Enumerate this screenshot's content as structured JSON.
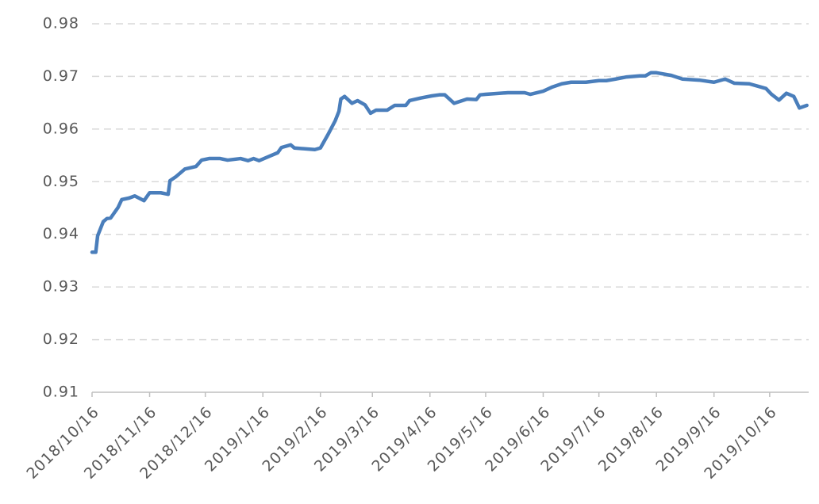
{
  "chart_data": {
    "type": "line",
    "x": [
      "2018/10/16",
      "2018/10/18",
      "2018/10/19",
      "2018/10/22",
      "2018/10/24",
      "2018/10/26",
      "2018/10/30",
      "2018/11/01",
      "2018/11/05",
      "2018/11/08",
      "2018/11/13",
      "2018/11/16",
      "2018/11/22",
      "2018/11/26",
      "2018/11/27",
      "2018/11/30",
      "2018/12/05",
      "2018/12/11",
      "2018/12/14",
      "2018/12/18",
      "2018/12/24",
      "2018/12/28",
      "2019/01/04",
      "2019/01/08",
      "2019/01/11",
      "2019/01/14",
      "2019/01/20",
      "2019/01/24",
      "2019/01/26",
      "2019/01/31",
      "2019/02/02",
      "2019/02/13",
      "2019/02/16",
      "2019/02/20",
      "2019/02/24",
      "2019/02/26",
      "2019/02/27",
      "2019/03/01",
      "2019/03/05",
      "2019/03/08",
      "2019/03/12",
      "2019/03/15",
      "2019/03/18",
      "2019/03/24",
      "2019/03/28",
      "2019/04/03",
      "2019/04/05",
      "2019/04/11",
      "2019/04/17",
      "2019/04/21",
      "2019/04/24",
      "2019/04/29",
      "2019/05/06",
      "2019/05/11",
      "2019/05/13",
      "2019/05/16",
      "2019/05/28",
      "2019/06/06",
      "2019/06/09",
      "2019/06/16",
      "2019/06/21",
      "2019/06/26",
      "2019/07/01",
      "2019/07/09",
      "2019/07/16",
      "2019/07/20",
      "2019/07/25",
      "2019/07/31",
      "2019/08/07",
      "2019/08/10",
      "2019/08/13",
      "2019/08/16",
      "2019/08/24",
      "2019/08/30",
      "2019/09/08",
      "2019/09/16",
      "2019/09/22",
      "2019/09/27",
      "2019/10/05",
      "2019/10/11",
      "2019/10/14",
      "2019/10/17",
      "2019/10/21",
      "2019/10/25",
      "2019/10/29",
      "2019/11/01",
      "2019/11/05"
    ],
    "series": [
      {
        "name": "series",
        "color": "#4a7ebb",
        "values": [
          0.9366,
          0.9366,
          0.9397,
          0.9424,
          0.943,
          0.9431,
          0.9451,
          0.9466,
          0.9469,
          0.9473,
          0.9464,
          0.9479,
          0.9479,
          0.9476,
          0.9502,
          0.9509,
          0.9524,
          0.9529,
          0.9541,
          0.9544,
          0.9544,
          0.9541,
          0.9544,
          0.954,
          0.9544,
          0.954,
          0.9549,
          0.9555,
          0.9565,
          0.957,
          0.9564,
          0.9561,
          0.9564,
          0.9589,
          0.9616,
          0.9634,
          0.9657,
          0.9662,
          0.9649,
          0.9654,
          0.9646,
          0.963,
          0.9636,
          0.9636,
          0.9645,
          0.9645,
          0.9654,
          0.9659,
          0.9663,
          0.9665,
          0.9665,
          0.9649,
          0.9657,
          0.9656,
          0.9665,
          0.9666,
          0.9669,
          0.9669,
          0.9666,
          0.9672,
          0.968,
          0.9686,
          0.9689,
          0.9689,
          0.9692,
          0.9692,
          0.9695,
          0.9699,
          0.9701,
          0.9701,
          0.9707,
          0.9707,
          0.9702,
          0.9695,
          0.9693,
          0.9689,
          0.9695,
          0.9687,
          0.9686,
          0.968,
          0.9677,
          0.9666,
          0.9655,
          0.9668,
          0.9662,
          0.964,
          0.9645
        ]
      }
    ],
    "xlim": [
      "2018/10/16",
      "2019/11/06"
    ],
    "xticks": [
      "2018/10/16",
      "2018/11/16",
      "2018/12/16",
      "2019/1/16",
      "2019/2/16",
      "2019/3/16",
      "2019/4/16",
      "2019/5/16",
      "2019/6/16",
      "2019/7/16",
      "2019/8/16",
      "2019/9/16",
      "2019/10/16"
    ],
    "ylim": [
      0.91,
      0.98
    ],
    "yticks": [
      0.91,
      0.92,
      0.93,
      0.94,
      0.95,
      0.96,
      0.97,
      0.98
    ],
    "grid": true
  }
}
